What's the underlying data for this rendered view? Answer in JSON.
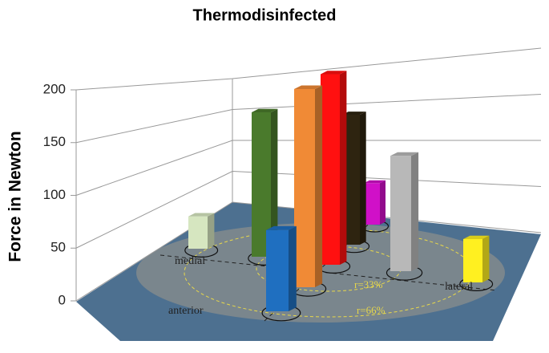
{
  "chart_data": {
    "type": "bar3d",
    "title": "Thermodisinfected",
    "y_label": "Force in Newton",
    "categories": [
      null,
      null,
      null,
      null,
      null,
      null,
      null,
      null,
      null
    ],
    "values": [
      35,
      150,
      75,
      190,
      190,
      135,
      45,
      115,
      45
    ],
    "colors": [
      "#d6e6c0",
      "#4a7a2c",
      "#1f6fc0",
      "#f08a36",
      "#ff1010",
      "#2e2410",
      "#d010c8",
      "#b8b8b8",
      "#fff020"
    ],
    "ylim": [
      0,
      200
    ],
    "yticks": [
      0,
      50,
      100,
      150,
      200
    ],
    "grid": true,
    "annotations": [
      "medial",
      "anterior",
      "lateral",
      "r=33%",
      "r=66%"
    ]
  }
}
